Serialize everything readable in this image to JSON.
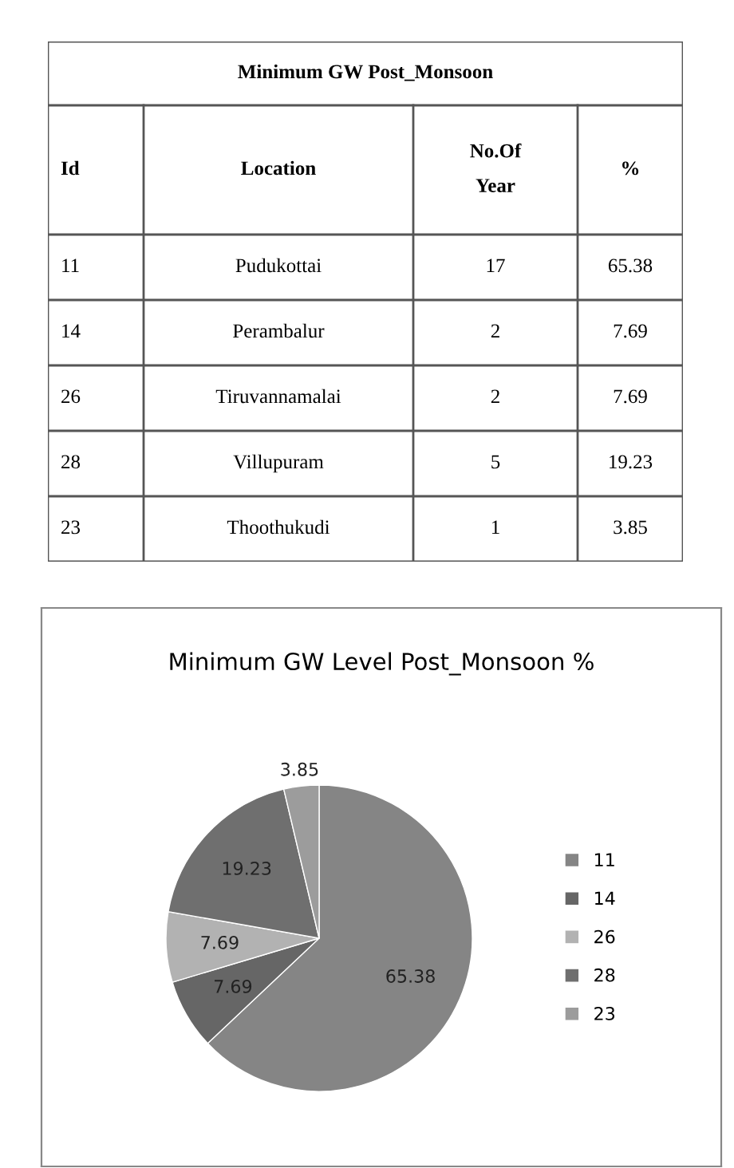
{
  "chart_data": [
    {
      "type": "other",
      "title": "Minimum GW Post_Monsoon",
      "categories": [
        "Id",
        "Location",
        "No.Of\nYear",
        "%"
      ],
      "annotations": [
        "11",
        "Pudukottai",
        "17",
        "65.38",
        "14",
        "Perambalur",
        "2",
        "7.69",
        "26",
        "Tiruvannamalai",
        "2",
        "7.69",
        "28",
        "Villupuram",
        "5",
        "19.23",
        "23",
        "Thoothukudi",
        "1",
        "3.85"
      ]
    },
    {
      "type": "pie",
      "title": "Minimum GW Level Post_Monsoon %",
      "categories": [
        "11",
        "14",
        "26",
        "28",
        "23"
      ],
      "values": [
        65.38,
        7.69,
        7.69,
        19.23,
        3.85
      ],
      "colors": [
        "#858585",
        "#666666",
        "#b2b2b2",
        "#6f6f6f",
        "#9c9c9c"
      ],
      "data_labels": true,
      "legend": "right"
    }
  ]
}
